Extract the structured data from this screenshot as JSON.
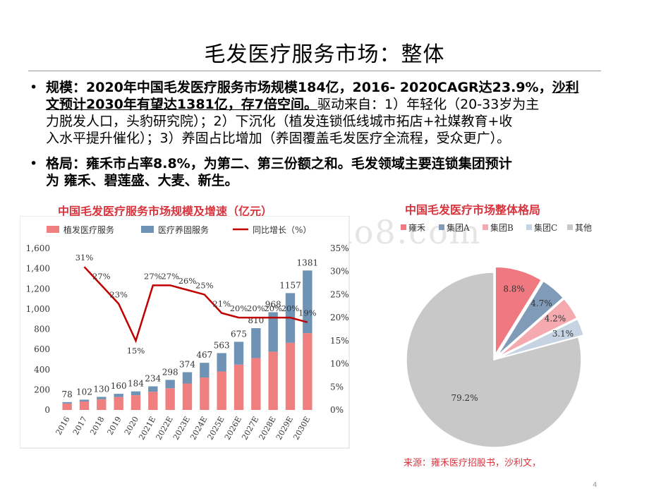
{
  "title": "毛发医疗服务市场：整体",
  "bullets": [
    {
      "marker": "•",
      "bold1": "规模：2020年中国毛发医疗服务市场规模184亿，2016- 2020CAGR达23.9%，",
      "ul1": "沙利",
      "ul2": "文预计2030年有望达1381亿，存7倍空间。",
      "rest2": "驱动来自：1）年轻化（20-33岁为主",
      "line3": "力脱发人口，头豹研究院）；2）下沉化（植发连锁低线城市拓店+社媒教育+收",
      "line4": "入水平提升催化）；3）养固占比增加（养固覆盖毛发医疗全流程，受众更广）。"
    },
    {
      "marker": "•",
      "line1": "格局：雍禾市占率8.8%，为第二、第三份额之和。毛发领域主要连锁集团预计",
      "line2": "为 雍禾、碧莲盛、大麦、新生。"
    }
  ],
  "chart_titles": {
    "bar": "中国毛发医疗服务市场规模及增速（亿元）",
    "pie": "中国毛发医疗市场整体格局"
  },
  "source": "来源：雍禾医疗招股书，沙利文，",
  "page_number": "4",
  "watermark": "www.baogao8.com",
  "chart_data": [
    {
      "type": "bar",
      "categories": [
        "2016",
        "2017",
        "2018",
        "2019",
        "2020",
        "2021E",
        "2022E",
        "2023E",
        "2024E",
        "2025E",
        "2026E",
        "2027E",
        "2028E",
        "2029E",
        "2030E"
      ],
      "series": [
        {
          "name": "植发医疗服务",
          "color": "#f08080",
          "values": [
            64,
            84,
            106,
            128,
            146,
            180,
            215,
            262,
            321,
            381,
            449,
            514,
            577,
            665,
            761
          ]
        },
        {
          "name": "医疗养固服务",
          "color": "#6f93b5",
          "values": [
            14,
            18,
            24,
            32,
            38,
            54,
            83,
            112,
            146,
            182,
            226,
            296,
            391,
            492,
            620
          ]
        },
        {
          "name": "同比增长（%）",
          "color": "#c00000",
          "axis": "right",
          "values": [
            null,
            31,
            27,
            23,
            15,
            27,
            27,
            26,
            25,
            21,
            20,
            20,
            20,
            20,
            19
          ]
        }
      ],
      "totals": [
        78,
        102,
        130,
        160,
        184,
        234,
        298,
        374,
        467,
        563,
        675,
        810,
        968,
        1157,
        1381
      ],
      "growth_labels": [
        "31%",
        "27%",
        "23%",
        "15%",
        "27%",
        "27%",
        "26%",
        "25%",
        "21%",
        "20%",
        "20%",
        "20%",
        "20%",
        "19%"
      ],
      "y_ticks": [
        "1,600",
        "1,400",
        "1,200",
        "1,000",
        "800",
        "600",
        "400",
        "200",
        "0"
      ],
      "y2_ticks": [
        "35%",
        "30%",
        "25%",
        "20%",
        "15%",
        "10%",
        "5%",
        "0%"
      ],
      "ylim": [
        0,
        1600
      ],
      "y2lim": [
        0,
        35
      ]
    },
    {
      "type": "pie",
      "labels": [
        "雍禾",
        "集团A",
        "集团B",
        "集团C",
        "其他"
      ],
      "values": [
        8.8,
        4.7,
        4.2,
        3.1,
        79.2
      ],
      "value_labels": [
        "8.8%",
        "4.7%",
        "4.2%",
        "3.1%",
        "79.2%"
      ],
      "colors": [
        "#f07880",
        "#7f9bb8",
        "#f5aab0",
        "#c5d3e2",
        "#c8c8c8"
      ],
      "legend": "top"
    }
  ]
}
